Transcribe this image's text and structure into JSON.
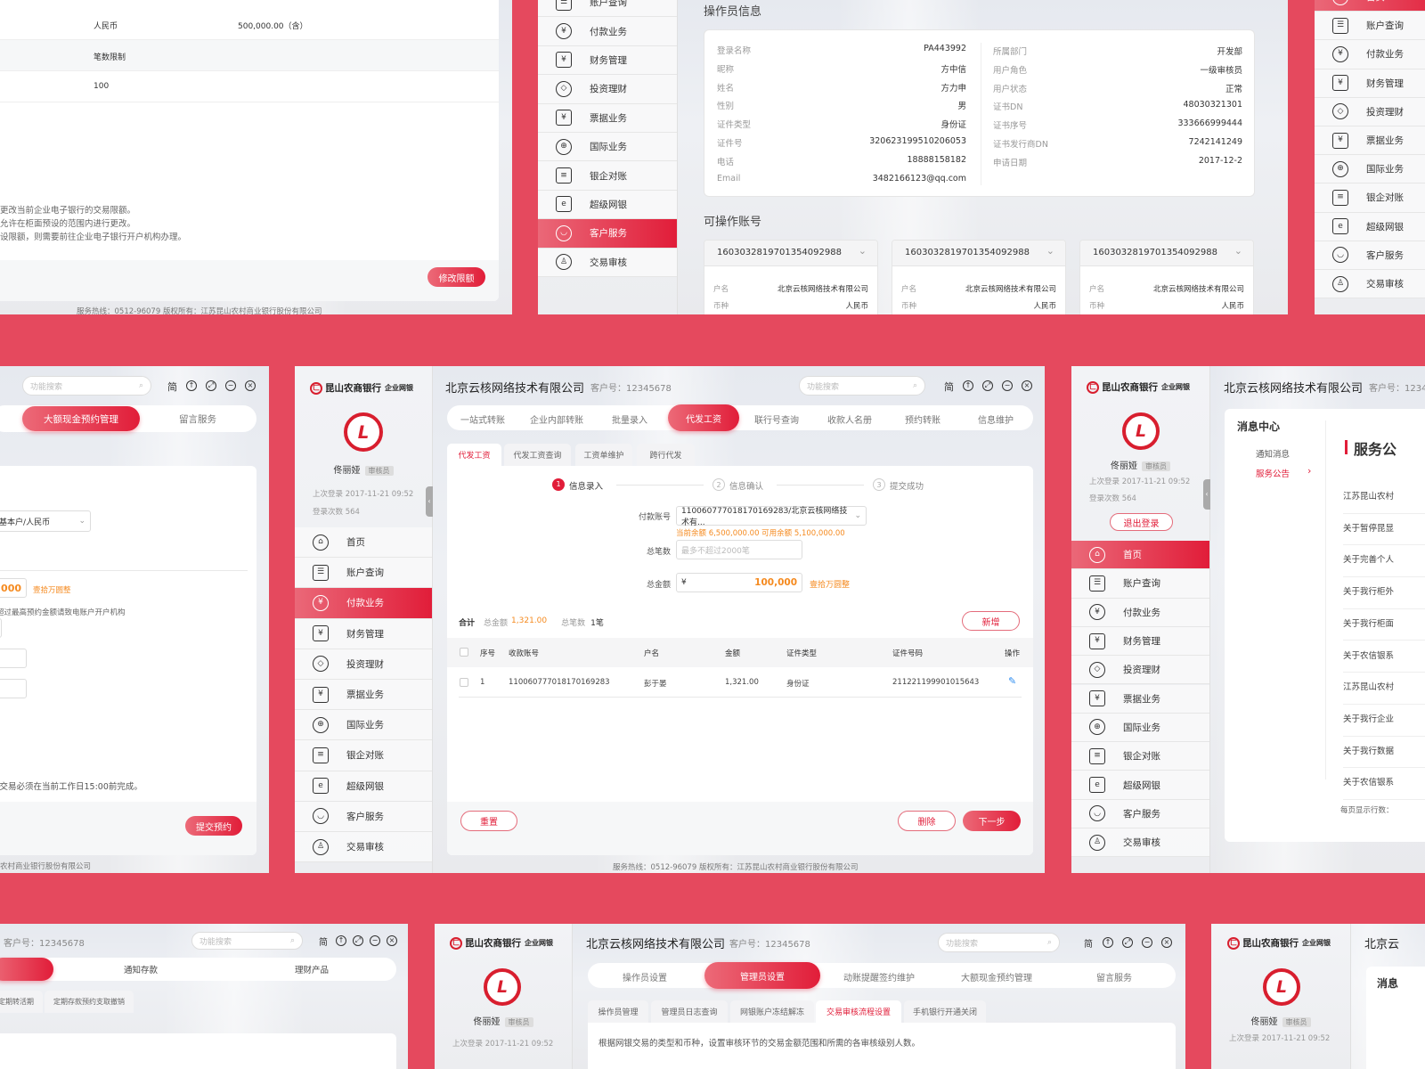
{
  "colors": {
    "background": "#e5495e",
    "accent": "#e11d39",
    "highlight": "#f58a1f"
  },
  "common": {
    "bank_name": "昆山农商银行",
    "bank_sub": "企业网银",
    "company": "北京云核网络技术有限公司",
    "customer_no": "客户号：12345678",
    "search_placeholder": "功能搜索",
    "lang": "简",
    "user_name": "佟丽娅",
    "user_role": "审核员",
    "last_login": "上次登录  2017-11-21 09:52",
    "login_count": "登录次数  564",
    "logout": "退出登录",
    "footer": "服务热线：0512-96079     版权所有：江苏昆山农村商业银行股份有限公司",
    "menu": [
      {
        "label": "首页",
        "icon": "home-icon"
      },
      {
        "label": "账户查询",
        "icon": "account-query-icon"
      },
      {
        "label": "付款业务",
        "icon": "payment-icon"
      },
      {
        "label": "财务管理",
        "icon": "finance-icon"
      },
      {
        "label": "投资理财",
        "icon": "investment-icon"
      },
      {
        "label": "票据业务",
        "icon": "bill-icon"
      },
      {
        "label": "国际业务",
        "icon": "globe-icon"
      },
      {
        "label": "银企对账",
        "icon": "reconcile-icon"
      },
      {
        "label": "超级网银",
        "icon": "super-ebank-icon"
      },
      {
        "label": "客户服务",
        "icon": "customer-service-icon"
      },
      {
        "label": "交易审核",
        "icon": "transaction-review-icon"
      }
    ]
  },
  "limit_panel": {
    "rows": [
      {
        "c1": "人民币",
        "c2": "500,000.00（含）"
      },
      {
        "c1": "笔数限制",
        "c2": ""
      },
      {
        "c1": "100",
        "c2": ""
      }
    ],
    "notes": [
      "更改当前企业电子银行的交易限额。",
      "允许在柜面预设的范围内进行更改。",
      "设限额，则需要前往企业电子银行开户机构办理。"
    ],
    "modify_button": "修改限额"
  },
  "operator_panel": {
    "active_menu": "客户服务",
    "title": "操作员信息",
    "left": [
      {
        "k": "登录名称",
        "v": "PA443992"
      },
      {
        "k": "昵称",
        "v": "方中信"
      },
      {
        "k": "姓名",
        "v": "方力申"
      },
      {
        "k": "性别",
        "v": "男"
      },
      {
        "k": "证件类型",
        "v": "身份证"
      },
      {
        "k": "证件号",
        "v": "320623199510206053"
      },
      {
        "k": "电话",
        "v": "18888158182"
      },
      {
        "k": "Email",
        "v": "3482166123@qq.com"
      }
    ],
    "right": [
      {
        "k": "所属部门",
        "v": "开发部"
      },
      {
        "k": "用户角色",
        "v": "一级审核员"
      },
      {
        "k": "用户状态",
        "v": "正常"
      },
      {
        "k": "证书DN",
        "v": "48030321301"
      },
      {
        "k": "证书序号",
        "v": "333666999444"
      },
      {
        "k": "证书发行商DN",
        "v": "7242141249"
      },
      {
        "k": "申请日期",
        "v": "2017-12-2"
      }
    ],
    "accounts_title": "可操作账号",
    "accounts": [
      {
        "no": "1603032819701354092988",
        "name_k": "户名",
        "name_v": "北京云核网络技术有限公司",
        "cur_k": "币种",
        "cur_v": "人民币"
      },
      {
        "no": "1603032819701354092988",
        "name_k": "户名",
        "name_v": "北京云核网络技术有限公司",
        "cur_k": "币种",
        "cur_v": "人民币"
      },
      {
        "no": "1603032819701354092988",
        "name_k": "户名",
        "name_v": "北京云核网络技术有限公司",
        "cur_k": "币种",
        "cur_v": "人民币"
      }
    ]
  },
  "topright_panel": {
    "active_menu": "首页"
  },
  "cash_panel": {
    "tabs": [
      "大额现金预约管理",
      "留言服务"
    ],
    "active_tab": "大额现金预约管理",
    "account_select": "/基本户/人民币",
    "amount": ",000",
    "amount_words": "壹拾万圆整",
    "hint": "超过最高预约金额请致电账户开户机构",
    "note": "的交易必须在当前工作日15:00前完成。",
    "submit": "提交预约",
    "footer": "农村商业银行股份有限公司"
  },
  "payroll_panel": {
    "active_menu": "付款业务",
    "tabs": [
      "一站式转账",
      "企业内部转账",
      "批量录入",
      "代发工资",
      "联行号查询",
      "收款人名册",
      "预约转账",
      "信息维护"
    ],
    "active_tab": "代发工资",
    "subtabs": [
      "代发工资",
      "代发工资查询",
      "工资单维护",
      "跨行代发"
    ],
    "active_subtab": "代发工资",
    "steps": [
      {
        "n": "1",
        "label": "信息录入"
      },
      {
        "n": "2",
        "label": "信息确认"
      },
      {
        "n": "3",
        "label": "提交成功"
      }
    ],
    "current_step": 1,
    "form": {
      "account_label": "付款账号",
      "account_value": "11006077701817016928З/北京云核网络技术有...",
      "balance": "当前余额 6,500,000.00  可用余额 5,100,000.00",
      "count_label": "总笔数",
      "count_placeholder": "最多不超过2000笔",
      "amount_label": "总金额",
      "currency": "¥",
      "amount_value": "100,000",
      "amount_words": "壹拾万圆整"
    },
    "summary": {
      "total": "合计",
      "amount_label": "总金额",
      "amount": "1,321.00",
      "count_label": "总笔数",
      "count": "1笔"
    },
    "add_button": "新增",
    "table": {
      "headers": [
        "序号",
        "收款账号",
        "户名",
        "金额",
        "证件类型",
        "证件号码",
        "操作"
      ],
      "rows": [
        [
          "1",
          "110060777018170169283",
          "彭于晏",
          "1,321.00",
          "身份证",
          "211221199901015643"
        ]
      ]
    },
    "reset_button": "重置",
    "delete_button": "删除",
    "next_button": "下一步"
  },
  "message_panel": {
    "active_menu": "首页",
    "center_title": "消息中心",
    "nav": [
      "通知消息",
      "服务公告"
    ],
    "active_nav": "服务公告",
    "section_title": "服务公",
    "items": [
      "江苏昆山农村",
      "关于暂停昆显",
      "关于完善个人",
      "关于我行柜外",
      "关于我行柜面",
      "关于农信银系",
      "江苏昆山农村",
      "关于我行企业",
      "关于我行数据",
      "关于农信银系"
    ],
    "page_size_label": "每页显示行数："
  },
  "deposit_panel": {
    "tabs": [
      "通知存款",
      "理财产品"
    ],
    "subtabs": [
      "定期转活期",
      "定期存款预约支取撤销"
    ]
  },
  "admin_panel": {
    "tabs": [
      "操作员设置",
      "管理员设置",
      "动账提醒签约维护",
      "大额现金预约管理",
      "留言服务"
    ],
    "active_tab": "管理员设置",
    "subtabs": [
      "操作员管理",
      "管理员日志查询",
      "网银账户冻结解冻",
      "交易审核流程设置",
      "手机银行开通关闭"
    ],
    "active_subtab": "交易审核流程设置",
    "description": "根据网银交易的类型和币种，设置审核环节的交易金额范围和所需的各审核级别人数。"
  },
  "msg2_panel": {
    "title": "北京云",
    "center_title": "消息"
  }
}
